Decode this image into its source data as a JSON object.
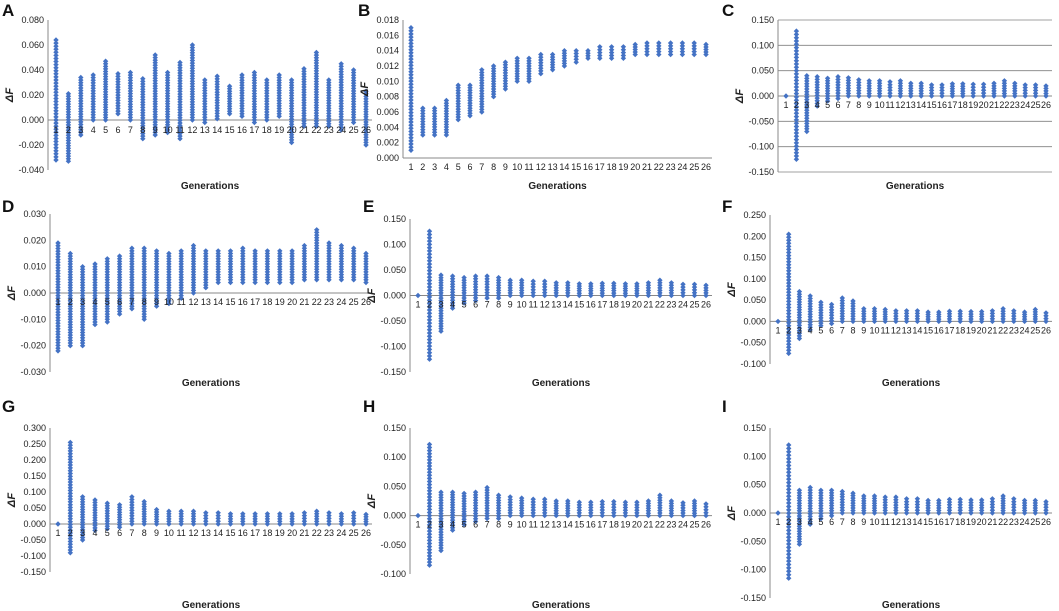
{
  "figure": {
    "marker_color": "#4472c4"
  },
  "chart_data": [
    {
      "panel": "A",
      "type": "scatter",
      "xlabel": "Generations",
      "ylabel": "ΔF",
      "ylim": [
        -0.04,
        0.08
      ],
      "yticks": [
        "-0.040",
        "-0.020",
        "0.000",
        "0.020",
        "0.040",
        "0.060",
        "0.080"
      ],
      "grid": false,
      "categories": [
        1,
        2,
        3,
        4,
        5,
        6,
        7,
        8,
        9,
        10,
        11,
        12,
        13,
        14,
        15,
        16,
        17,
        18,
        19,
        20,
        21,
        22,
        23,
        24,
        25,
        26
      ],
      "ranges": [
        [
          -0.032,
          0.064
        ],
        [
          -0.033,
          0.021
        ],
        [
          -0.012,
          0.034
        ],
        [
          0.0,
          0.036
        ],
        [
          0.0,
          0.047
        ],
        [
          0.005,
          0.037
        ],
        [
          0.0,
          0.038
        ],
        [
          -0.015,
          0.033
        ],
        [
          -0.012,
          0.052
        ],
        [
          -0.01,
          0.038
        ],
        [
          -0.015,
          0.046
        ],
        [
          0.0,
          0.06
        ],
        [
          -0.002,
          0.032
        ],
        [
          0.001,
          0.035
        ],
        [
          0.005,
          0.027
        ],
        [
          0.003,
          0.036
        ],
        [
          -0.002,
          0.038
        ],
        [
          0.0,
          0.032
        ],
        [
          0.003,
          0.036
        ],
        [
          -0.018,
          0.032
        ],
        [
          -0.005,
          0.041
        ],
        [
          -0.005,
          0.054
        ],
        [
          -0.005,
          0.032
        ],
        [
          -0.008,
          0.045
        ],
        [
          -0.002,
          0.04
        ],
        [
          -0.02,
          0.023
        ]
      ]
    },
    {
      "panel": "B",
      "type": "scatter",
      "xlabel": "Generations",
      "ylabel": "ΔF",
      "ylim": [
        0,
        0.018
      ],
      "yticks": [
        "0.000",
        "0.002",
        "0.004",
        "0.006",
        "0.008",
        "0.010",
        "0.012",
        "0.014",
        "0.016",
        "0.018"
      ],
      "grid": false,
      "categories": [
        1,
        2,
        3,
        4,
        5,
        6,
        7,
        8,
        9,
        10,
        11,
        12,
        13,
        14,
        15,
        16,
        17,
        18,
        19,
        20,
        21,
        22,
        23,
        24,
        25,
        26
      ],
      "ranges": [
        [
          0.001,
          0.017
        ],
        [
          0.003,
          0.0065
        ],
        [
          0.003,
          0.0065
        ],
        [
          0.003,
          0.0075
        ],
        [
          0.005,
          0.0095
        ],
        [
          0.0055,
          0.0095
        ],
        [
          0.006,
          0.0115
        ],
        [
          0.008,
          0.012
        ],
        [
          0.009,
          0.0125
        ],
        [
          0.01,
          0.013
        ],
        [
          0.01,
          0.013
        ],
        [
          0.011,
          0.0135
        ],
        [
          0.0115,
          0.0135
        ],
        [
          0.012,
          0.014
        ],
        [
          0.0125,
          0.014
        ],
        [
          0.013,
          0.014
        ],
        [
          0.013,
          0.0145
        ],
        [
          0.013,
          0.0145
        ],
        [
          0.013,
          0.0145
        ],
        [
          0.0135,
          0.0148
        ],
        [
          0.0135,
          0.015
        ],
        [
          0.0135,
          0.015
        ],
        [
          0.0135,
          0.015
        ],
        [
          0.0135,
          0.015
        ],
        [
          0.0135,
          0.015
        ],
        [
          0.0135,
          0.0148
        ]
      ]
    },
    {
      "panel": "C",
      "type": "scatter",
      "xlabel": "Generations",
      "ylabel": "ΔF",
      "ylim": [
        -0.15,
        0.15
      ],
      "yticks": [
        "-0.150",
        "-0.100",
        "-0.050",
        "0.000",
        "0.050",
        "0.100",
        "0.150"
      ],
      "grid": true,
      "categories": [
        1,
        2,
        3,
        4,
        5,
        6,
        7,
        8,
        9,
        10,
        11,
        12,
        13,
        14,
        15,
        16,
        17,
        18,
        19,
        20,
        21,
        22,
        23,
        24,
        25,
        26
      ],
      "ranges": [
        [
          0.0,
          0.0
        ],
        [
          -0.125,
          0.128
        ],
        [
          -0.07,
          0.04
        ],
        [
          -0.02,
          0.038
        ],
        [
          -0.01,
          0.035
        ],
        [
          -0.005,
          0.038
        ],
        [
          0.0,
          0.036
        ],
        [
          0.0,
          0.032
        ],
        [
          0.0,
          0.03
        ],
        [
          0.0,
          0.03
        ],
        [
          0.0,
          0.028
        ],
        [
          0.0,
          0.03
        ],
        [
          0.0,
          0.025
        ],
        [
          0.0,
          0.025
        ],
        [
          0.0,
          0.022
        ],
        [
          0.0,
          0.022
        ],
        [
          0.0,
          0.024
        ],
        [
          0.0,
          0.024
        ],
        [
          0.0,
          0.023
        ],
        [
          0.0,
          0.023
        ],
        [
          0.0,
          0.025
        ],
        [
          0.0,
          0.03
        ],
        [
          0.0,
          0.025
        ],
        [
          0.0,
          0.022
        ],
        [
          0.0,
          0.022
        ],
        [
          0.0,
          0.02
        ]
      ]
    },
    {
      "panel": "D",
      "type": "scatter",
      "xlabel": "Generations",
      "ylabel": "ΔF",
      "ylim": [
        -0.03,
        0.03
      ],
      "yticks": [
        "-0.030",
        "-0.020",
        "-0.010",
        "0.000",
        "0.010",
        "0.020",
        "0.030"
      ],
      "grid": false,
      "categories": [
        1,
        2,
        3,
        4,
        5,
        6,
        7,
        8,
        9,
        10,
        11,
        12,
        13,
        14,
        15,
        16,
        17,
        18,
        19,
        20,
        21,
        22,
        23,
        24,
        25,
        26
      ],
      "ranges": [
        [
          -0.022,
          0.019
        ],
        [
          -0.02,
          0.015
        ],
        [
          -0.02,
          0.01
        ],
        [
          -0.012,
          0.011
        ],
        [
          -0.011,
          0.013
        ],
        [
          -0.008,
          0.014
        ],
        [
          -0.006,
          0.017
        ],
        [
          -0.01,
          0.017
        ],
        [
          -0.005,
          0.016
        ],
        [
          -0.004,
          0.015
        ],
        [
          -0.002,
          0.016
        ],
        [
          0.0,
          0.018
        ],
        [
          0.002,
          0.016
        ],
        [
          0.004,
          0.016
        ],
        [
          0.004,
          0.016
        ],
        [
          0.004,
          0.017
        ],
        [
          0.004,
          0.016
        ],
        [
          0.004,
          0.016
        ],
        [
          0.004,
          0.016
        ],
        [
          0.004,
          0.016
        ],
        [
          0.005,
          0.018
        ],
        [
          0.005,
          0.024
        ],
        [
          0.005,
          0.019
        ],
        [
          0.005,
          0.018
        ],
        [
          0.005,
          0.017
        ],
        [
          0.004,
          0.015
        ]
      ]
    },
    {
      "panel": "E",
      "type": "scatter",
      "xlabel": "Generations",
      "ylabel": "ΔF",
      "ylim": [
        -0.15,
        0.15
      ],
      "yticks": [
        "-0.150",
        "-0.100",
        "-0.050",
        "0.000",
        "0.050",
        "0.100",
        "0.150"
      ],
      "grid": false,
      "categories": [
        1,
        2,
        3,
        4,
        5,
        6,
        7,
        8,
        9,
        10,
        11,
        12,
        13,
        14,
        15,
        16,
        17,
        18,
        19,
        20,
        21,
        22,
        23,
        24,
        25,
        26
      ],
      "ranges": [
        [
          0.0,
          0.0
        ],
        [
          -0.125,
          0.126
        ],
        [
          -0.07,
          0.04
        ],
        [
          -0.025,
          0.038
        ],
        [
          -0.015,
          0.035
        ],
        [
          -0.01,
          0.038
        ],
        [
          -0.005,
          0.038
        ],
        [
          -0.005,
          0.035
        ],
        [
          0.0,
          0.03
        ],
        [
          0.0,
          0.03
        ],
        [
          0.0,
          0.028
        ],
        [
          0.0,
          0.028
        ],
        [
          0.0,
          0.025
        ],
        [
          0.0,
          0.025
        ],
        [
          0.0,
          0.023
        ],
        [
          0.0,
          0.023
        ],
        [
          0.0,
          0.024
        ],
        [
          0.0,
          0.024
        ],
        [
          0.0,
          0.023
        ],
        [
          0.0,
          0.023
        ],
        [
          0.0,
          0.025
        ],
        [
          0.0,
          0.03
        ],
        [
          0.0,
          0.025
        ],
        [
          0.0,
          0.022
        ],
        [
          0.0,
          0.022
        ],
        [
          0.0,
          0.02
        ]
      ]
    },
    {
      "panel": "F",
      "type": "scatter",
      "xlabel": "Generations",
      "ylabel": "ΔF",
      "ylim": [
        -0.1,
        0.25
      ],
      "yticks": [
        "-0.100",
        "-0.050",
        "0.000",
        "0.050",
        "0.100",
        "0.150",
        "0.200",
        "0.250"
      ],
      "grid": false,
      "categories": [
        1,
        2,
        3,
        4,
        5,
        6,
        7,
        8,
        9,
        10,
        11,
        12,
        13,
        14,
        15,
        16,
        17,
        18,
        19,
        20,
        21,
        22,
        23,
        24,
        25,
        26
      ],
      "ranges": [
        [
          0.0,
          0.0
        ],
        [
          -0.075,
          0.205
        ],
        [
          -0.04,
          0.07
        ],
        [
          -0.02,
          0.06
        ],
        [
          -0.01,
          0.045
        ],
        [
          -0.005,
          0.04
        ],
        [
          0.0,
          0.055
        ],
        [
          0.0,
          0.048
        ],
        [
          0.0,
          0.03
        ],
        [
          0.0,
          0.03
        ],
        [
          0.0,
          0.028
        ],
        [
          0.0,
          0.025
        ],
        [
          0.0,
          0.025
        ],
        [
          0.0,
          0.025
        ],
        [
          0.0,
          0.022
        ],
        [
          0.0,
          0.022
        ],
        [
          0.0,
          0.024
        ],
        [
          0.0,
          0.024
        ],
        [
          0.0,
          0.023
        ],
        [
          0.0,
          0.023
        ],
        [
          0.0,
          0.025
        ],
        [
          0.0,
          0.03
        ],
        [
          0.0,
          0.025
        ],
        [
          0.0,
          0.022
        ],
        [
          0.0,
          0.028
        ],
        [
          0.0,
          0.02
        ]
      ]
    },
    {
      "panel": "G",
      "type": "scatter",
      "xlabel": "Generations",
      "ylabel": "ΔF",
      "ylim": [
        -0.15,
        0.3
      ],
      "yticks": [
        "-0.150",
        "-0.100",
        "-0.050",
        "0.000",
        "0.050",
        "0.100",
        "0.150",
        "0.200",
        "0.250",
        "0.300"
      ],
      "grid": false,
      "categories": [
        1,
        2,
        3,
        4,
        5,
        6,
        7,
        8,
        9,
        10,
        11,
        12,
        13,
        14,
        15,
        16,
        17,
        18,
        19,
        20,
        21,
        22,
        23,
        24,
        25,
        26
      ],
      "ranges": [
        [
          0.0,
          0.0
        ],
        [
          -0.09,
          0.255
        ],
        [
          -0.05,
          0.085
        ],
        [
          -0.02,
          0.075
        ],
        [
          -0.015,
          0.065
        ],
        [
          -0.01,
          0.06
        ],
        [
          0.0,
          0.085
        ],
        [
          0.0,
          0.07
        ],
        [
          0.0,
          0.045
        ],
        [
          0.0,
          0.04
        ],
        [
          0.0,
          0.04
        ],
        [
          0.0,
          0.04
        ],
        [
          0.0,
          0.035
        ],
        [
          0.0,
          0.035
        ],
        [
          0.0,
          0.032
        ],
        [
          0.0,
          0.032
        ],
        [
          0.0,
          0.032
        ],
        [
          0.0,
          0.032
        ],
        [
          0.0,
          0.032
        ],
        [
          0.0,
          0.032
        ],
        [
          0.0,
          0.035
        ],
        [
          0.0,
          0.04
        ],
        [
          0.0,
          0.035
        ],
        [
          0.0,
          0.032
        ],
        [
          0.0,
          0.035
        ],
        [
          0.0,
          0.03
        ]
      ]
    },
    {
      "panel": "H",
      "type": "scatter",
      "xlabel": "Generations",
      "ylabel": "ΔF",
      "ylim": [
        -0.1,
        0.15
      ],
      "yticks": [
        "-0.100",
        "-0.050",
        "0.000",
        "0.050",
        "0.100",
        "0.150"
      ],
      "grid": false,
      "categories": [
        1,
        2,
        3,
        4,
        5,
        6,
        7,
        8,
        9,
        10,
        11,
        12,
        13,
        14,
        15,
        16,
        17,
        18,
        19,
        20,
        21,
        22,
        23,
        24,
        25,
        26
      ],
      "ranges": [
        [
          0.0,
          0.0
        ],
        [
          -0.085,
          0.122
        ],
        [
          -0.06,
          0.04
        ],
        [
          -0.025,
          0.04
        ],
        [
          -0.015,
          0.038
        ],
        [
          -0.01,
          0.04
        ],
        [
          -0.005,
          0.048
        ],
        [
          -0.005,
          0.035
        ],
        [
          0.0,
          0.032
        ],
        [
          0.0,
          0.03
        ],
        [
          0.0,
          0.028
        ],
        [
          0.0,
          0.028
        ],
        [
          0.0,
          0.025
        ],
        [
          0.0,
          0.025
        ],
        [
          0.0,
          0.023
        ],
        [
          0.0,
          0.023
        ],
        [
          0.0,
          0.024
        ],
        [
          0.0,
          0.024
        ],
        [
          0.0,
          0.023
        ],
        [
          0.0,
          0.023
        ],
        [
          0.0,
          0.025
        ],
        [
          0.0,
          0.035
        ],
        [
          0.0,
          0.025
        ],
        [
          0.0,
          0.022
        ],
        [
          0.0,
          0.025
        ],
        [
          0.0,
          0.02
        ]
      ]
    },
    {
      "panel": "I",
      "type": "scatter",
      "xlabel": "Generations",
      "ylabel": "ΔF",
      "ylim": [
        -0.15,
        0.15
      ],
      "yticks": [
        "-0.150",
        "-0.100",
        "-0.050",
        "0.000",
        "0.050",
        "0.100",
        "0.150"
      ],
      "grid": false,
      "categories": [
        1,
        2,
        3,
        4,
        5,
        6,
        7,
        8,
        9,
        10,
        11,
        12,
        13,
        14,
        15,
        16,
        17,
        18,
        19,
        20,
        21,
        22,
        23,
        24,
        25,
        26
      ],
      "ranges": [
        [
          0.0,
          0.0
        ],
        [
          -0.115,
          0.12
        ],
        [
          -0.055,
          0.04
        ],
        [
          -0.02,
          0.045
        ],
        [
          -0.01,
          0.04
        ],
        [
          -0.005,
          0.04
        ],
        [
          0.0,
          0.038
        ],
        [
          0.0,
          0.035
        ],
        [
          0.0,
          0.03
        ],
        [
          0.0,
          0.03
        ],
        [
          0.0,
          0.028
        ],
        [
          0.0,
          0.028
        ],
        [
          0.0,
          0.025
        ],
        [
          0.0,
          0.025
        ],
        [
          0.0,
          0.022
        ],
        [
          0.0,
          0.022
        ],
        [
          0.0,
          0.024
        ],
        [
          0.0,
          0.024
        ],
        [
          0.0,
          0.023
        ],
        [
          0.0,
          0.023
        ],
        [
          0.0,
          0.025
        ],
        [
          0.0,
          0.03
        ],
        [
          0.0,
          0.025
        ],
        [
          0.0,
          0.022
        ],
        [
          0.0,
          0.022
        ],
        [
          0.0,
          0.02
        ]
      ]
    }
  ]
}
